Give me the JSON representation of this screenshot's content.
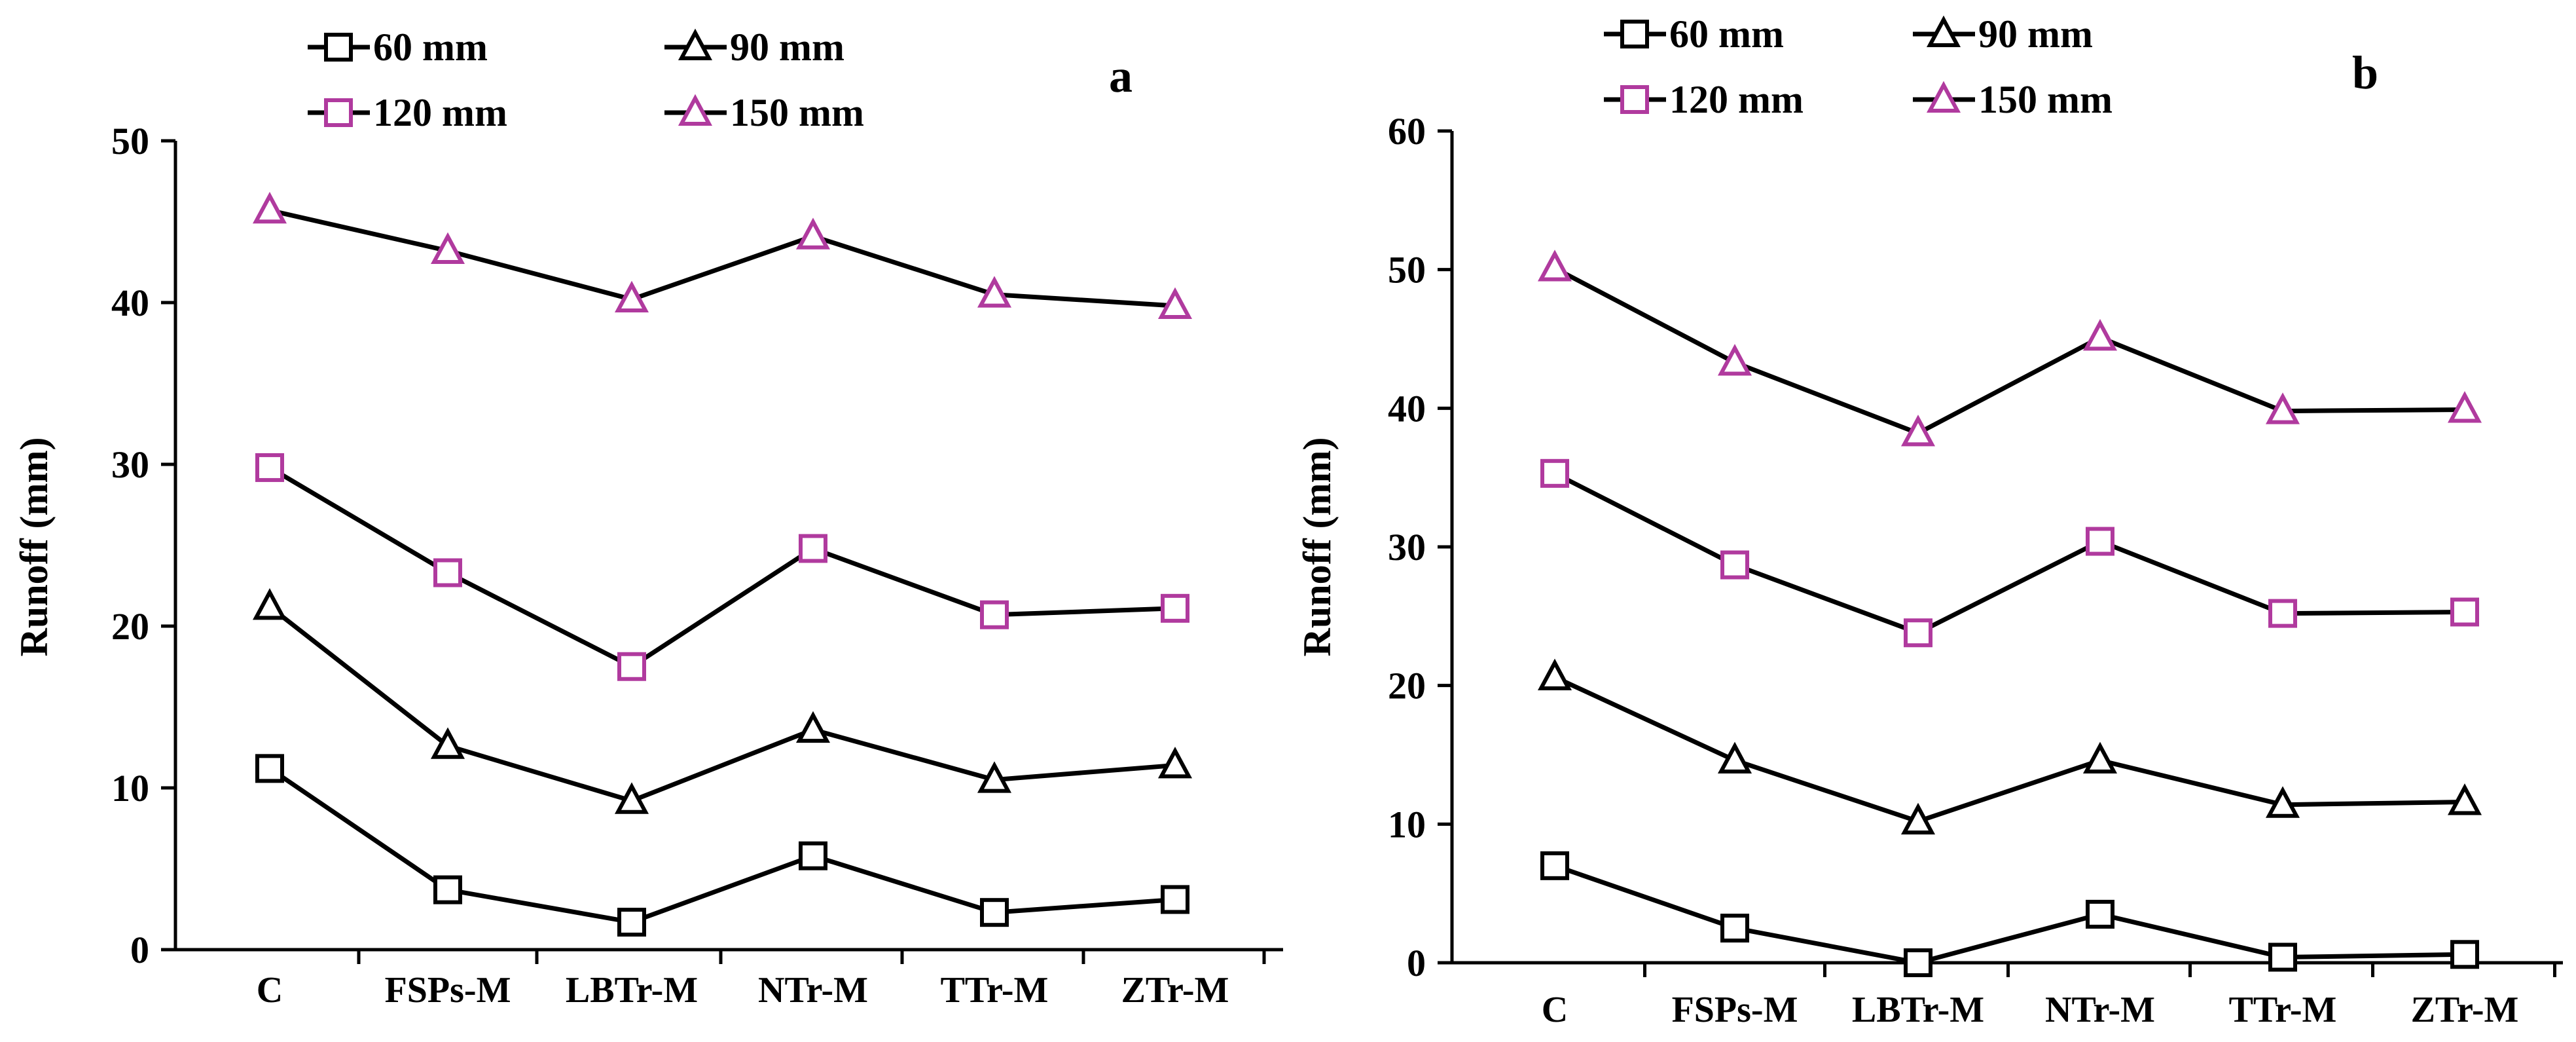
{
  "chart_data": [
    {
      "type": "line",
      "panel_label": "a",
      "categories": [
        "C",
        "FSPs-M",
        "LBTr-M",
        "NTr-M",
        "TTr-M",
        "ZTr-M"
      ],
      "ylabel": "Runoff (mm)",
      "xlabel": "",
      "ylim": [
        0,
        50
      ],
      "yticks": [
        "0",
        "10",
        "20",
        "30",
        "40",
        "50"
      ],
      "grid": false,
      "legend_position": "top",
      "series": [
        {
          "name": "60 mm",
          "marker": "square",
          "marker_color": "#000000",
          "values": [
            11.2,
            3.7,
            1.7,
            5.8,
            2.3,
            3.1
          ]
        },
        {
          "name": "90 mm",
          "marker": "triangle",
          "marker_color": "#000000",
          "values": [
            21.2,
            12.6,
            9.2,
            13.6,
            10.5,
            11.4
          ]
        },
        {
          "name": "120 mm",
          "marker": "square",
          "marker_color": "#B03A9E",
          "values": [
            29.8,
            23.3,
            17.5,
            24.8,
            20.7,
            21.1
          ]
        },
        {
          "name": "150 mm",
          "marker": "triangle",
          "marker_color": "#B03A9E",
          "values": [
            45.7,
            43.2,
            40.2,
            44.1,
            40.5,
            39.8
          ]
        }
      ]
    },
    {
      "type": "line",
      "panel_label": "b",
      "categories": [
        "C",
        "FSPs-M",
        "LBTr-M",
        "NTr-M",
        "TTr-M",
        "ZTr-M"
      ],
      "ylabel": "Runoff (mm)",
      "xlabel": "",
      "ylim": [
        0,
        60
      ],
      "yticks": [
        "0",
        "10",
        "20",
        "30",
        "40",
        "50",
        "60"
      ],
      "grid": false,
      "legend_position": "top",
      "series": [
        {
          "name": "60 mm",
          "marker": "square",
          "marker_color": "#000000",
          "values": [
            7.0,
            2.5,
            0.0,
            3.5,
            0.4,
            0.6
          ]
        },
        {
          "name": "90 mm",
          "marker": "triangle",
          "marker_color": "#000000",
          "values": [
            20.6,
            14.6,
            10.2,
            14.6,
            11.4,
            11.6
          ]
        },
        {
          "name": "120 mm",
          "marker": "square",
          "marker_color": "#B03A9E",
          "values": [
            35.3,
            28.7,
            23.8,
            30.4,
            25.2,
            25.3
          ]
        },
        {
          "name": "150 mm",
          "marker": "triangle",
          "marker_color": "#B03A9E",
          "values": [
            50.1,
            43.3,
            38.2,
            45.1,
            39.8,
            39.9
          ]
        }
      ]
    }
  ]
}
